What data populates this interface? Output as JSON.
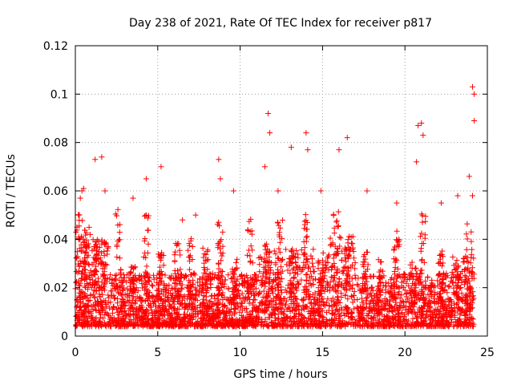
{
  "chart_data": {
    "type": "scatter",
    "title": "Day 238 of 2021, Rate Of TEC Index for receiver p817",
    "xlabel": "GPS time / hours",
    "ylabel": "ROTI / TECUs",
    "xlim": [
      0,
      25
    ],
    "ylim": [
      0,
      0.12
    ],
    "xticks": [
      "0",
      "5",
      "10",
      "15",
      "20",
      "25"
    ],
    "yticks": [
      "0",
      "0.02",
      "0.04",
      "0.06",
      "0.08",
      "0.1",
      "0.12"
    ],
    "grid": true,
    "marker": "+",
    "color": "#ff0000",
    "series": [
      {
        "points": [
          [
            0.1,
            0.045
          ],
          [
            0.2,
            0.05
          ],
          [
            0.3,
            0.057
          ],
          [
            0.4,
            0.06
          ],
          [
            0.5,
            0.061
          ],
          [
            1.2,
            0.073
          ],
          [
            1.6,
            0.074
          ],
          [
            1.8,
            0.06
          ],
          [
            3.5,
            0.057
          ],
          [
            4.3,
            0.065
          ],
          [
            5.2,
            0.07
          ],
          [
            6.5,
            0.048
          ],
          [
            7.3,
            0.05
          ],
          [
            8.7,
            0.073
          ],
          [
            8.8,
            0.065
          ],
          [
            9.6,
            0.06
          ],
          [
            11.5,
            0.07
          ],
          [
            11.7,
            0.092
          ],
          [
            11.8,
            0.084
          ],
          [
            12.3,
            0.06
          ],
          [
            13.1,
            0.078
          ],
          [
            14.0,
            0.084
          ],
          [
            14.1,
            0.077
          ],
          [
            14.9,
            0.06
          ],
          [
            16.0,
            0.077
          ],
          [
            16.5,
            0.082
          ],
          [
            17.7,
            0.06
          ],
          [
            19.5,
            0.055
          ],
          [
            20.7,
            0.072
          ],
          [
            20.8,
            0.087
          ],
          [
            21.0,
            0.088
          ],
          [
            21.1,
            0.083
          ],
          [
            22.2,
            0.055
          ],
          [
            23.2,
            0.058
          ],
          [
            23.9,
            0.066
          ],
          [
            24.1,
            0.103
          ],
          [
            24.2,
            0.1
          ],
          [
            24.2,
            0.089
          ],
          [
            24.1,
            0.058
          ]
        ]
      }
    ]
  }
}
